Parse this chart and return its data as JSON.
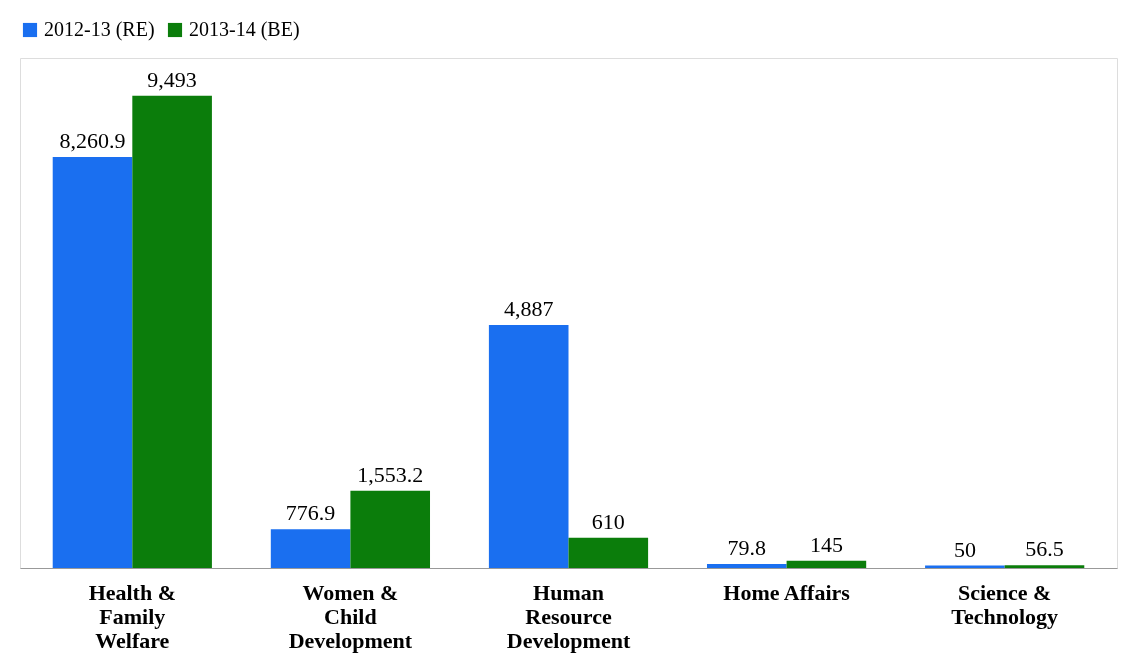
{
  "chart_data": {
    "type": "bar",
    "categories": [
      "Health & Family Welfare",
      "Women & Child Development",
      "Human Resource Development",
      "Home Affairs",
      "Science & Technology"
    ],
    "series": [
      {
        "name": "2012-13 (RE)",
        "color": "#1a6ff0",
        "values": [
          8260.9,
          776.9,
          4887,
          79.8,
          50
        ],
        "value_labels": [
          "8,260.9",
          "776.9",
          "4,887",
          "79.8",
          "50"
        ]
      },
      {
        "name": "2013-14 (BE)",
        "color": "#0b7d0b",
        "values": [
          9493,
          1553.2,
          610,
          145,
          56.5
        ],
        "value_labels": [
          "9,493",
          "1,553.2",
          "610",
          "145",
          "56.5"
        ]
      }
    ],
    "legend": "top"
  }
}
